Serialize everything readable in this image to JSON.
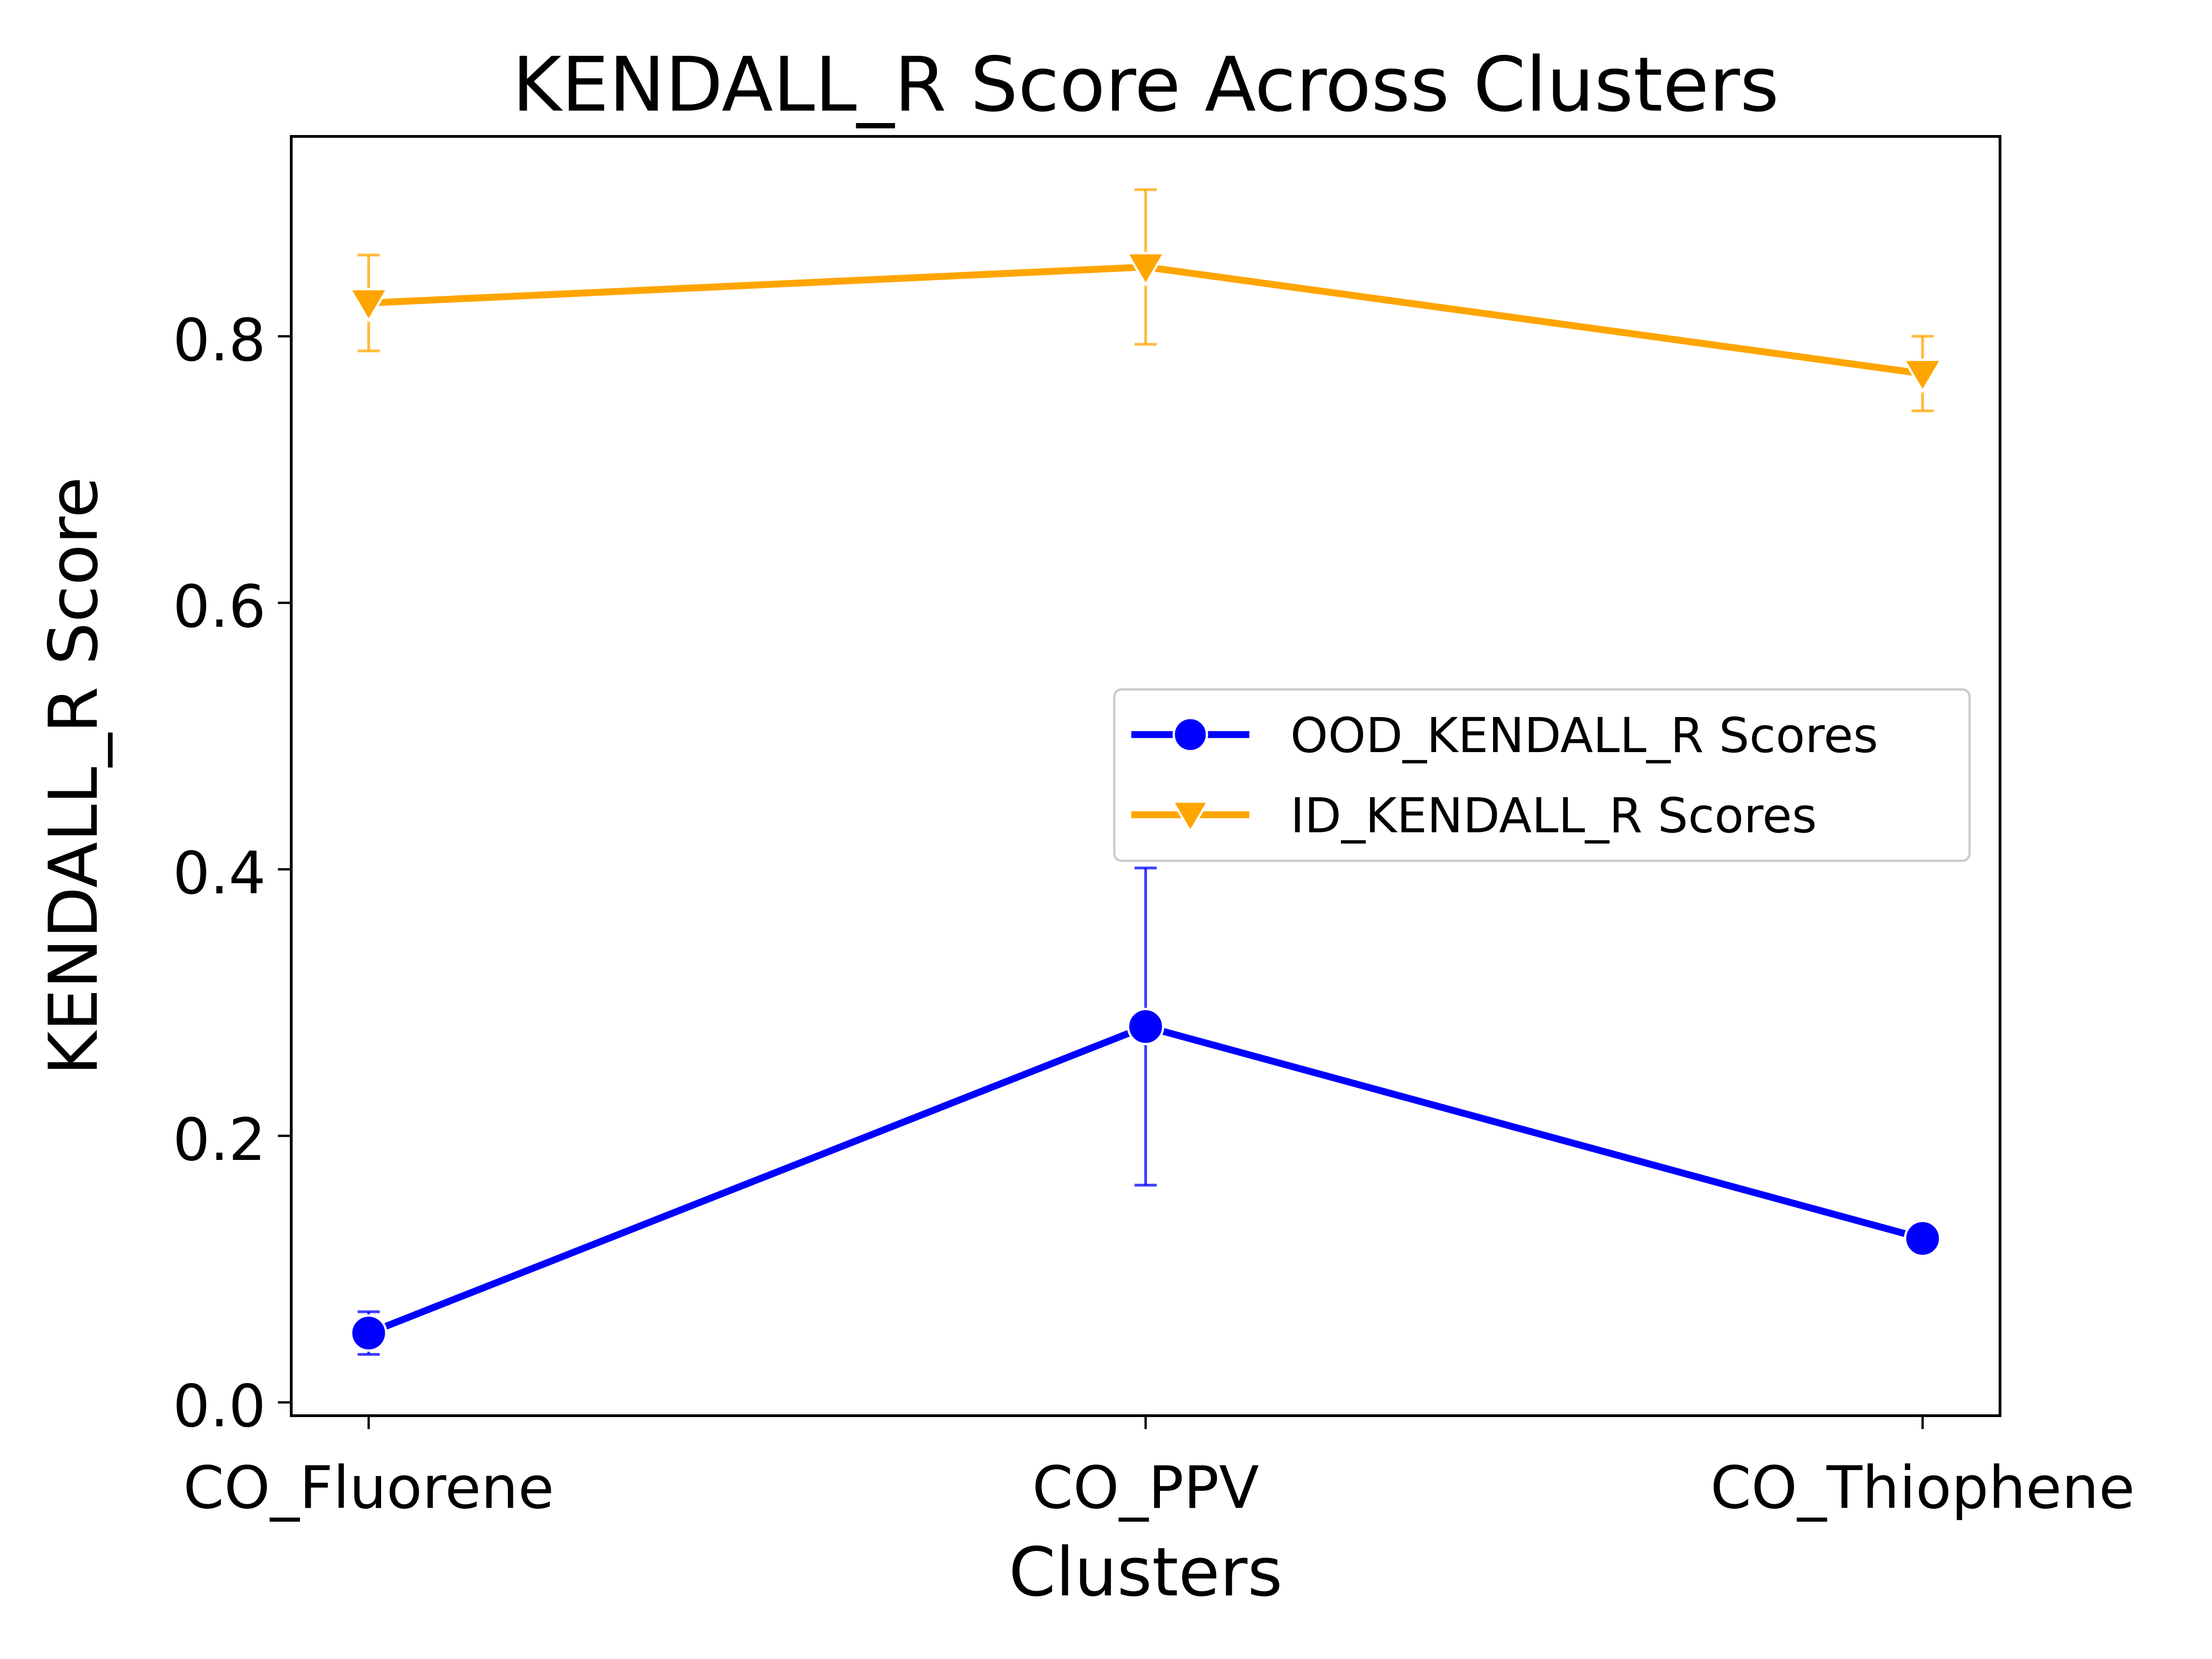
{
  "chart_data": {
    "type": "line",
    "title": "KENDALL_R Score Across Clusters",
    "xlabel": "Clusters",
    "ylabel": "KENDALL_R Score",
    "categories": [
      "CO_Fluorene",
      "CO_PPV",
      "CO_Thiophene"
    ],
    "ylim": [
      -0.01,
      0.95
    ],
    "yticks": [
      0.0,
      0.2,
      0.4,
      0.6,
      0.8
    ],
    "ytick_labels": [
      "0.0",
      "0.2",
      "0.4",
      "0.6",
      "0.8"
    ],
    "grid": false,
    "legend_position": "center-right",
    "series": [
      {
        "name": "OOD_KENDALL_R Scores",
        "color": "#0000ff",
        "marker": "circle",
        "values": [
          0.052,
          0.282,
          0.123
        ],
        "error": [
          0.016,
          0.119,
          0.01
        ]
      },
      {
        "name": "ID_KENDALL_R Scores",
        "color": "#ffa500",
        "marker": "triangle-down",
        "values": [
          0.825,
          0.852,
          0.772
        ],
        "error": [
          0.036,
          0.058,
          0.028
        ]
      }
    ]
  }
}
